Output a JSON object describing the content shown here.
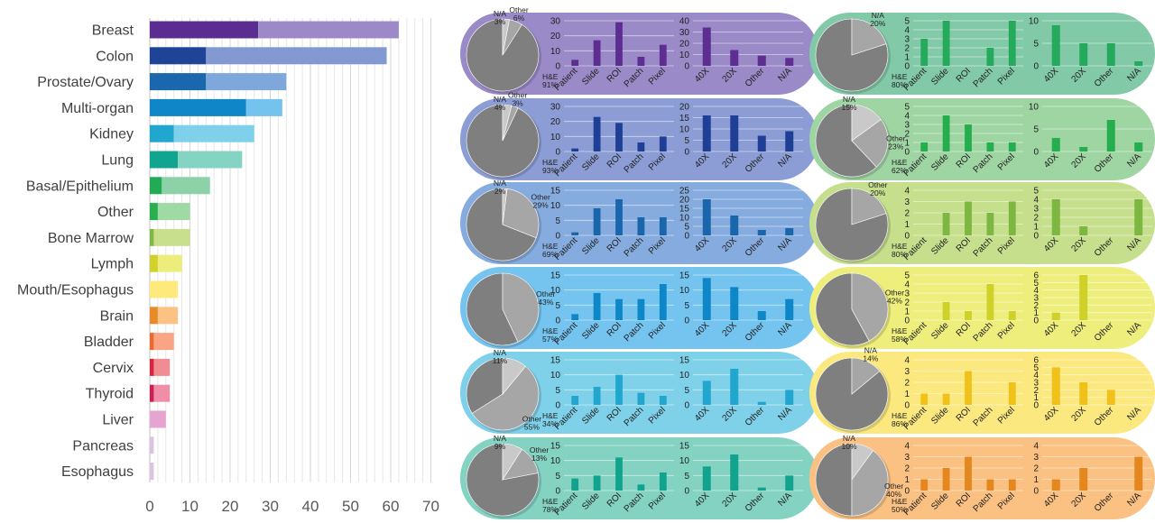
{
  "chart_data": [
    {
      "type": "bar",
      "stacked": true,
      "orientation": "horizontal",
      "categories": [
        "Breast",
        "Colon",
        "Prostate/Ovary",
        "Multi-organ",
        "Kidney",
        "Lung",
        "Basal/Epithelium",
        "Other",
        "Bone Marrow",
        "Lymph",
        "Mouth/Esophagus",
        "Brain",
        "Bladder",
        "Cervix",
        "Thyroid",
        "Liver",
        "Pancreas",
        "Esophagus"
      ],
      "series": [
        {
          "values": [
            27,
            14,
            14,
            24,
            6,
            7,
            3,
            2,
            1,
            2,
            0,
            2,
            1,
            1,
            1,
            0,
            0,
            0
          ]
        },
        {
          "values": [
            35,
            45,
            20,
            9,
            20,
            16,
            12,
            8,
            9,
            6,
            7,
            5,
            5,
            4,
            4,
            4,
            1,
            1
          ]
        }
      ],
      "colors_dark": [
        "#5b2d90",
        "#1f4397",
        "#1a67ad",
        "#0f86c7",
        "#21a7cf",
        "#11a58f",
        "#22aa55",
        "#28b04f",
        "#7fb843",
        "#d2d02a",
        "#f6dc44",
        "#e88a27",
        "#eb6a30",
        "#d6263f",
        "#cc1f52",
        "#e48ac0",
        "#cfa7d2",
        "#cfa7d2"
      ],
      "colors_light": [
        "#9d88c8",
        "#8299d2",
        "#7ea8dc",
        "#74c3ef",
        "#7fd0ea",
        "#85d3c3",
        "#8dd1a9",
        "#9fd9a4",
        "#c8df8e",
        "#eced7a",
        "#fde97c",
        "#fbc283",
        "#f8a485",
        "#f08d93",
        "#f18ea7",
        "#e6a5d0",
        "#dcc3e1",
        "#dcc3e1"
      ],
      "xlim": [
        0,
        70
      ],
      "xticks": [
        "0",
        "10",
        "20",
        "30",
        "40",
        "50",
        "60",
        "70"
      ]
    },
    {
      "type": "panels",
      "panels": [
        {
          "band": "#9a8ac7",
          "bar": "#5d2d91",
          "pie": [
            {
              "label": "H&E",
              "pct": "91%",
              "value": 91
            },
            {
              "label": "Other",
              "pct": "6%",
              "value": 6
            },
            {
              "label": "N/A",
              "pct": "3%",
              "value": 3
            }
          ],
          "c1": {
            "categories": [
              "Patient",
              "Slide",
              "ROI",
              "Patch",
              "Pixel"
            ],
            "values": [
              4,
              17,
              29,
              6,
              14
            ],
            "yticks": [
              "0",
              "10",
              "20",
              "30"
            ],
            "ymax": 30
          },
          "c2": {
            "categories": [
              "40X",
              "20X",
              "Other",
              "N/A"
            ],
            "values": [
              34,
              14,
              9,
              7
            ],
            "yticks": [
              "0",
              "10",
              "20",
              "30",
              "40"
            ],
            "ymax": 40
          }
        },
        {
          "band": "#82c9a8",
          "bar": "#24a95d",
          "pie": [
            {
              "label": "H&E",
              "pct": "80%",
              "value": 80
            },
            {
              "label": "N/A",
              "pct": "20%",
              "value": 20
            }
          ],
          "c1": {
            "categories": [
              "Patient",
              "Slide",
              "ROI",
              "Patch",
              "Pixel"
            ],
            "values": [
              3,
              5,
              0,
              2,
              5
            ],
            "yticks": [
              "0",
              "1",
              "2",
              "3",
              "4",
              "5"
            ],
            "ymax": 5
          },
          "c2": {
            "categories": [
              "40X",
              "20X",
              "Other",
              "N/A"
            ],
            "values": [
              9,
              5,
              5,
              1
            ],
            "yticks": [
              "0",
              "5",
              "10"
            ],
            "ymax": 10
          }
        },
        {
          "band": "#8b9dd4",
          "bar": "#1f3f96",
          "pie": [
            {
              "label": "H&E",
              "pct": "93%",
              "value": 93
            },
            {
              "label": "Other",
              "pct": "3%",
              "value": 3
            },
            {
              "label": "N/A",
              "pct": "4%",
              "value": 4
            }
          ],
          "c1": {
            "categories": [
              "Patient",
              "Slide",
              "ROI",
              "Patch",
              "Pixel"
            ],
            "values": [
              2,
              23,
              19,
              6,
              10
            ],
            "yticks": [
              "0",
              "10",
              "20",
              "30"
            ],
            "ymax": 30
          },
          "c2": {
            "categories": [
              "40X",
              "20X",
              "Other",
              "N/A"
            ],
            "values": [
              16,
              16,
              7,
              9
            ],
            "yticks": [
              "0",
              "5",
              "10",
              "15",
              "20"
            ],
            "ymax": 20
          }
        },
        {
          "band": "#9fd4a3",
          "bar": "#25ae4e",
          "pie": [
            {
              "label": "H&E",
              "pct": "62%",
              "value": 62
            },
            {
              "label": "Other",
              "pct": "23%",
              "value": 23
            },
            {
              "label": "N/A",
              "pct": "15%",
              "value": 15
            }
          ],
          "c1": {
            "categories": [
              "Patient",
              "Slide",
              "ROI",
              "Patch",
              "Pixel"
            ],
            "values": [
              1,
              4,
              3,
              1,
              1
            ],
            "yticks": [
              "0",
              "1",
              "2",
              "3",
              "4",
              "5"
            ],
            "ymax": 5
          },
          "c2": {
            "categories": [
              "40X",
              "20X",
              "Other",
              "N/A"
            ],
            "values": [
              3,
              1,
              7,
              2
            ],
            "yticks": [
              "0",
              "5",
              "10"
            ],
            "ymax": 10
          }
        },
        {
          "band": "#86acdf",
          "bar": "#1a66ad",
          "pie": [
            {
              "label": "H&E",
              "pct": "69%",
              "value": 69
            },
            {
              "label": "Other",
              "pct": "29%",
              "value": 29
            },
            {
              "label": "N/A",
              "pct": "2%",
              "value": 2
            }
          ],
          "c1": {
            "categories": [
              "Patient",
              "Slide",
              "ROI",
              "Patch",
              "Pixel"
            ],
            "values": [
              1,
              9,
              12,
              6,
              6
            ],
            "yticks": [
              "0",
              "5",
              "10",
              "15"
            ],
            "ymax": 15
          },
          "c2": {
            "categories": [
              "40X",
              "20X",
              "Other",
              "N/A"
            ],
            "values": [
              20,
              11,
              3,
              4
            ],
            "yticks": [
              "0",
              "5",
              "10",
              "15",
              "20",
              "25"
            ],
            "ymax": 25
          }
        },
        {
          "band": "#c5df8c",
          "bar": "#7db742",
          "pie": [
            {
              "label": "H&E",
              "pct": "80%",
              "value": 80
            },
            {
              "label": "Other",
              "pct": "20%",
              "value": 20
            }
          ],
          "c1": {
            "categories": [
              "Patient",
              "Slide",
              "ROI",
              "Patch",
              "Pixel"
            ],
            "values": [
              0,
              2,
              3,
              2,
              3
            ],
            "yticks": [
              "0",
              "1",
              "2",
              "3",
              "4"
            ],
            "ymax": 4
          },
          "c2": {
            "categories": [
              "40X",
              "20X",
              "Other",
              "N/A"
            ],
            "values": [
              4,
              1,
              0,
              4
            ],
            "yticks": [
              "0",
              "1",
              "2",
              "3",
              "4",
              "5"
            ],
            "ymax": 5
          }
        },
        {
          "band": "#74c4ef",
          "bar": "#0e87c8",
          "pie": [
            {
              "label": "H&E",
              "pct": "57%",
              "value": 57
            },
            {
              "label": "Other",
              "pct": "43%",
              "value": 43
            }
          ],
          "c1": {
            "categories": [
              "Patient",
              "Slide",
              "ROI",
              "Patch",
              "Pixel"
            ],
            "values": [
              2,
              9,
              7,
              7,
              12
            ],
            "yticks": [
              "0",
              "5",
              "10",
              "15"
            ],
            "ymax": 15
          },
          "c2": {
            "categories": [
              "40X",
              "20X",
              "Other",
              "N/A"
            ],
            "values": [
              14,
              11,
              3,
              7
            ],
            "yticks": [
              "0",
              "5",
              "10",
              "15"
            ],
            "ymax": 15
          }
        },
        {
          "band": "#eeee7d",
          "bar": "#cfd028",
          "pie": [
            {
              "label": "H&E",
              "pct": "58%",
              "value": 58
            },
            {
              "label": "Other",
              "pct": "42%",
              "value": 42
            }
          ],
          "c1": {
            "categories": [
              "Patient",
              "Slide",
              "ROI",
              "Patch",
              "Pixel"
            ],
            "values": [
              0,
              2,
              1,
              4,
              1
            ],
            "yticks": [
              "0",
              "1",
              "2",
              "3",
              "4",
              "5"
            ],
            "ymax": 5
          },
          "c2": {
            "categories": [
              "40X",
              "20X",
              "Other",
              "N/A"
            ],
            "values": [
              1,
              6,
              0,
              0
            ],
            "yticks": [
              "0",
              "1",
              "2",
              "3",
              "4",
              "5",
              "6"
            ],
            "ymax": 6
          }
        },
        {
          "band": "#7fd1ea",
          "bar": "#21a6cf",
          "pie": [
            {
              "label": "H&E",
              "pct": "34%",
              "value": 34
            },
            {
              "label": "Other",
              "pct": "55%",
              "value": 55
            },
            {
              "label": "N/A",
              "pct": "11%",
              "value": 11
            }
          ],
          "c1": {
            "categories": [
              "Patient",
              "Slide",
              "ROI",
              "Patch",
              "Pixel"
            ],
            "values": [
              3,
              6,
              10,
              4,
              3
            ],
            "yticks": [
              "0",
              "5",
              "10",
              "15"
            ],
            "ymax": 15
          },
          "c2": {
            "categories": [
              "40X",
              "20X",
              "Other",
              "N/A"
            ],
            "values": [
              8,
              12,
              1,
              5
            ],
            "yticks": [
              "0",
              "5",
              "10",
              "15"
            ],
            "ymax": 15
          }
        },
        {
          "band": "#fbe97f",
          "bar": "#f2c119",
          "pie": [
            {
              "label": "H&E",
              "pct": "86%",
              "value": 86
            },
            {
              "label": "N/A",
              "pct": "14%",
              "value": 14
            }
          ],
          "c1": {
            "categories": [
              "Patient",
              "Slide",
              "ROI",
              "Patch",
              "Pixel"
            ],
            "values": [
              1,
              1,
              3,
              0,
              2
            ],
            "yticks": [
              "0",
              "1",
              "2",
              "3",
              "4"
            ],
            "ymax": 4
          },
          "c2": {
            "categories": [
              "40X",
              "20X",
              "Other",
              "N/A"
            ],
            "values": [
              5,
              3,
              2,
              0
            ],
            "yticks": [
              "0",
              "1",
              "2",
              "3",
              "4",
              "5",
              "6"
            ],
            "ymax": 6
          }
        },
        {
          "band": "#84d2c2",
          "bar": "#11a38e",
          "pie": [
            {
              "label": "H&E",
              "pct": "78%",
              "value": 78
            },
            {
              "label": "Other",
              "pct": "13%",
              "value": 13
            },
            {
              "label": "N/A",
              "pct": "9%",
              "value": 9
            }
          ],
          "c1": {
            "categories": [
              "Patient",
              "Slide",
              "ROI",
              "Patch",
              "Pixel"
            ],
            "values": [
              4,
              5,
              11,
              2,
              6
            ],
            "yticks": [
              "0",
              "5",
              "10",
              "15"
            ],
            "ymax": 15
          },
          "c2": {
            "categories": [
              "40X",
              "20X",
              "Other",
              "N/A"
            ],
            "values": [
              8,
              12,
              1,
              5
            ],
            "yticks": [
              "0",
              "5",
              "10",
              "15"
            ],
            "ymax": 15
          }
        },
        {
          "band": "#fbc183",
          "bar": "#e5871f",
          "pie": [
            {
              "label": "H&E",
              "pct": "50%",
              "value": 50
            },
            {
              "label": "Other",
              "pct": "40%",
              "value": 40
            },
            {
              "label": "N/A",
              "pct": "10%",
              "value": 10
            }
          ],
          "c1": {
            "categories": [
              "Patient",
              "Slide",
              "ROI",
              "Patch",
              "Pixel"
            ],
            "values": [
              1,
              2,
              3,
              1,
              1
            ],
            "yticks": [
              "0",
              "1",
              "2",
              "3",
              "4"
            ],
            "ymax": 4
          },
          "c2": {
            "categories": [
              "40X",
              "20X",
              "Other",
              "N/A"
            ],
            "values": [
              1,
              2,
              0,
              3
            ],
            "yticks": [
              "0",
              "1",
              "2",
              "3",
              "4"
            ],
            "ymax": 4
          }
        }
      ]
    }
  ]
}
